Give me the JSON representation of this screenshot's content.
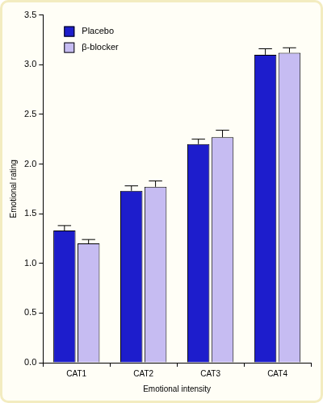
{
  "chart_data": {
    "type": "bar",
    "x_label": "Emotional intensity",
    "y_label": "Emotional rating",
    "categories": [
      "CAT1",
      "CAT2",
      "CAT3",
      "CAT4"
    ],
    "series": [
      {
        "name": "Placebo",
        "color": "#1d1dcc",
        "values": [
          1.33,
          1.73,
          2.2,
          3.1
        ],
        "errors": [
          0.05,
          0.05,
          0.05,
          0.06
        ]
      },
      {
        "name": "β-blocker",
        "color": "#c6bcf2",
        "values": [
          1.2,
          1.77,
          2.27,
          3.12
        ],
        "errors": [
          0.04,
          0.06,
          0.07,
          0.05
        ]
      }
    ],
    "ylim": [
      0,
      3.5
    ],
    "yticks": [
      {
        "value": 0,
        "label": "0.0"
      },
      0.5,
      {
        "value": 1,
        "label": "1.0"
      },
      1.5,
      {
        "value": 2,
        "label": "2.0"
      },
      2.5,
      {
        "value": 3,
        "label": "3.0"
      },
      3.5
    ],
    "grid": false,
    "legend": "upper left"
  }
}
